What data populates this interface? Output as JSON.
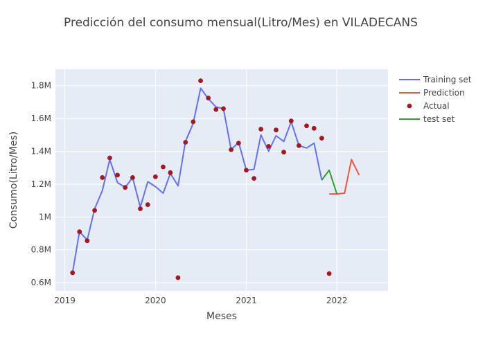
{
  "chart_data": {
    "type": "line",
    "title": "Predicción del consumo mensual(Litro/Mes) en VILADECANS",
    "xlabel": "Meses",
    "ylabel": "Consumo(Litro/Mes)",
    "xlim": [
      "2018-11-24",
      "2022-07-26"
    ],
    "ylim": [
      550000,
      1900000
    ],
    "x_ticks": [
      {
        "date": "2019-01-01",
        "label": "2019"
      },
      {
        "date": "2020-01-01",
        "label": "2020"
      },
      {
        "date": "2021-01-01",
        "label": "2021"
      },
      {
        "date": "2022-01-01",
        "label": "2022"
      }
    ],
    "y_ticks": [
      {
        "value": 600000,
        "label": "0.6M"
      },
      {
        "value": 800000,
        "label": "0.8M"
      },
      {
        "value": 1000000,
        "label": "1M"
      },
      {
        "value": 1200000,
        "label": "1.2M"
      },
      {
        "value": 1400000,
        "label": "1.4M"
      },
      {
        "value": 1600000,
        "label": "1.6M"
      },
      {
        "value": 1800000,
        "label": "1.8M"
      }
    ],
    "grid": true,
    "legend_position": "top-right",
    "series": [
      {
        "name": "Training set",
        "kind": "line",
        "color": "#636efa",
        "x": [
          "2019-02",
          "2019-03",
          "2019-04",
          "2019-05",
          "2019-06",
          "2019-07",
          "2019-08",
          "2019-09",
          "2019-10",
          "2019-11",
          "2019-12",
          "2020-01",
          "2020-02",
          "2020-03",
          "2020-04",
          "2020-05",
          "2020-06",
          "2020-07",
          "2020-08",
          "2020-09",
          "2020-10",
          "2020-11",
          "2020-12",
          "2021-01",
          "2021-02",
          "2021-03",
          "2021-04",
          "2021-05",
          "2021-06",
          "2021-07",
          "2021-08",
          "2021-09",
          "2021-10",
          "2021-11"
        ],
        "y": [
          660000,
          910000,
          860000,
          1050000,
          1160000,
          1350000,
          1210000,
          1180000,
          1240000,
          1060000,
          1215000,
          1185000,
          1145000,
          1265000,
          1190000,
          1460000,
          1570000,
          1785000,
          1720000,
          1670000,
          1660000,
          1410000,
          1455000,
          1285000,
          1290000,
          1500000,
          1400000,
          1495000,
          1460000,
          1580000,
          1435000,
          1420000,
          1450000,
          1225000
        ]
      },
      {
        "name": "Prediction",
        "kind": "line",
        "color": "#ef553b",
        "x": [
          "2021-12",
          "2022-01",
          "2022-02",
          "2022-03",
          "2022-04"
        ],
        "y": [
          1140000,
          1140000,
          1145000,
          1350000,
          1255000
        ]
      },
      {
        "name": "Actual",
        "kind": "markers",
        "color": "#a5181f",
        "x": [
          "2019-02",
          "2019-03",
          "2019-04",
          "2019-05",
          "2019-06",
          "2019-07",
          "2019-08",
          "2019-09",
          "2019-10",
          "2019-11",
          "2019-12",
          "2020-01",
          "2020-02",
          "2020-03",
          "2020-04",
          "2020-05",
          "2020-06",
          "2020-07",
          "2020-08",
          "2020-09",
          "2020-10",
          "2020-11",
          "2020-12",
          "2021-01",
          "2021-02",
          "2021-03",
          "2021-04",
          "2021-05",
          "2021-06",
          "2021-07",
          "2021-08",
          "2021-09",
          "2021-10",
          "2021-11",
          "2021-12"
        ],
        "y": [
          660000,
          910000,
          855000,
          1040000,
          1240000,
          1360000,
          1255000,
          1180000,
          1240000,
          1050000,
          1075000,
          1245000,
          1305000,
          1270000,
          630000,
          1455000,
          1580000,
          1830000,
          1725000,
          1655000,
          1660000,
          1410000,
          1450000,
          1285000,
          1235000,
          1535000,
          1430000,
          1530000,
          1395000,
          1585000,
          1435000,
          1555000,
          1540000,
          1480000,
          655000
        ]
      },
      {
        "name": "test set",
        "kind": "line",
        "color": "#2ca02c",
        "x": [
          "2021-11",
          "2021-12",
          "2022-01"
        ],
        "y": [
          1225000,
          1285000,
          1140000
        ]
      }
    ]
  }
}
